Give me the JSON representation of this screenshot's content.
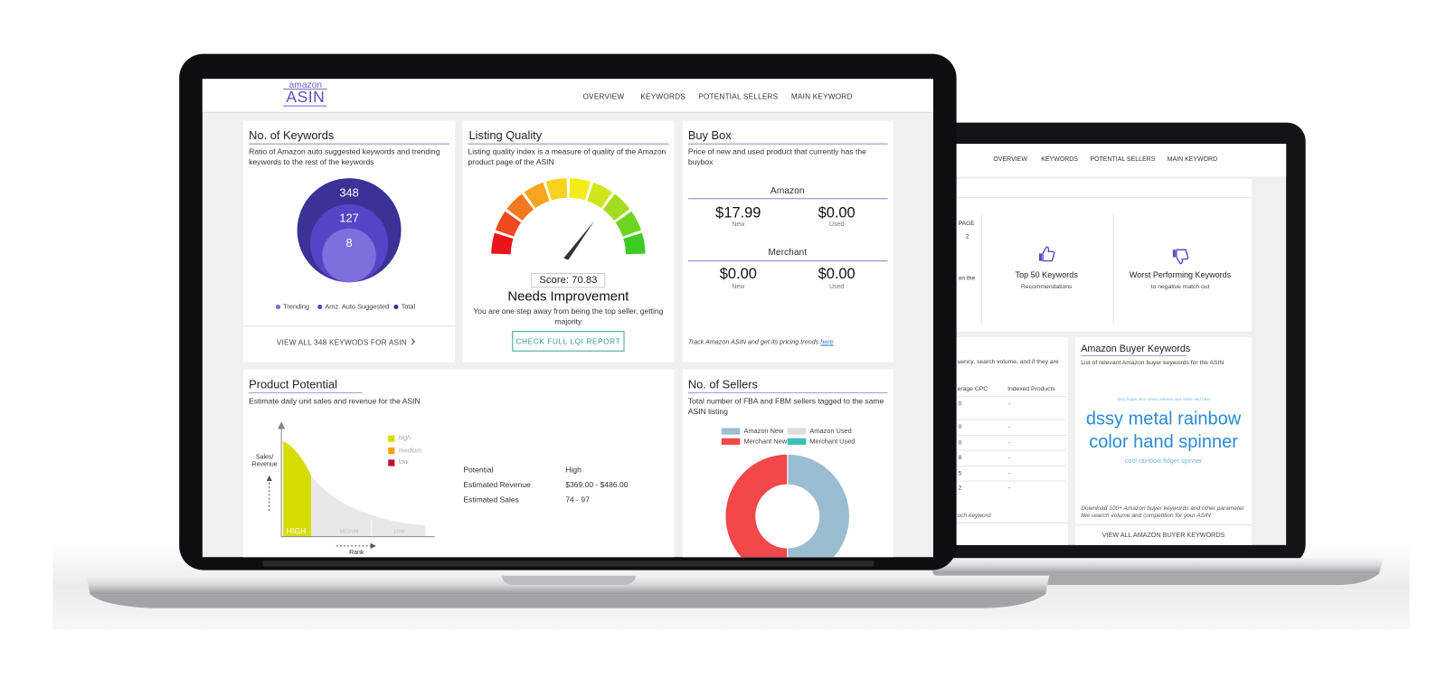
{
  "front": {
    "logo": {
      "top": "amazon",
      "bottom": "ASIN"
    },
    "nav": [
      "OVERVIEW",
      "KEYWORDS",
      "POTENTIAL SELLERS",
      "MAIN KEYWORD"
    ],
    "keywords_card": {
      "title": "No. of Keywords",
      "description": "Ratio of Amazon auto suggested keywords and trending keywords to the rest of the keywords",
      "circles": [
        "348",
        "127",
        "8"
      ],
      "legend": [
        {
          "label": "Trending",
          "color": "#7f6fdc"
        },
        {
          "label": "Amz. Auto Suggested",
          "color": "#5644c6"
        },
        {
          "label": "Total",
          "color": "#3a3296"
        }
      ],
      "link": "VIEW ALL 348 KEYWODS FOR ASIN"
    },
    "listing_quality": {
      "title": "Listing Quality",
      "description": "Listing quality index is a measure of quality of the Amazon product page of the ASIN",
      "score": "Score: 70.83",
      "status": "Needs Improvement",
      "note": "You are one step away from being the top seller, getting majority",
      "button": "CHECK FULL LQI REPORT"
    },
    "buy_box": {
      "title": "Buy Box",
      "description": "Price of new and used product that currently has the buybox",
      "sections": [
        {
          "name": "Amazon",
          "new_price": "$17.99",
          "new_label": "New",
          "used_price": "$0.00",
          "used_label": "Used"
        },
        {
          "name": "Merchant",
          "new_price": "$0.00",
          "new_label": "New",
          "used_price": "$0.00",
          "used_label": "Used"
        }
      ],
      "footer": "Track Amazon ASIN and get its pricing trends",
      "footer_link": "here"
    },
    "product_potential": {
      "title": "Product Potential",
      "description": "Estimate daily unit sales and revenue for the ASIN",
      "y_axis_label": "Sales/ Revenue",
      "x_axis_label": "Rank",
      "zones": [
        "HIGH",
        "MEDIUM",
        "LOW"
      ],
      "legend": [
        "high",
        "medium",
        "low"
      ],
      "rows": [
        {
          "label": "Potential",
          "value": "High"
        },
        {
          "label": "Estimated Revenue",
          "value": "$369.00 - $486.00"
        },
        {
          "label": "Estimated Sales",
          "value": "74 - 97"
        }
      ]
    }
  },
  "chart_data": {
    "type": "donut",
    "title": "No. of Sellers",
    "subtitle": "Total number of FBA and FBM sellers tagged to the same ASIN listing",
    "categories": [
      "Amazon New",
      "Amazon Used",
      "Merchant New",
      "Merchant Used"
    ],
    "values": [
      50,
      0,
      50,
      0
    ],
    "colors": [
      "#9bbdd1",
      "#dcdcdc",
      "#f2474b",
      "#3cc0b4"
    ]
  },
  "back": {
    "nav": [
      "OVERVIEW",
      "KEYWORDS",
      "POTENTIAL SELLERS",
      "MAIN KEYWORD"
    ],
    "partial": {
      "page": "PAGE",
      "page_value": "2",
      "on_the": "on the"
    },
    "top_keywords": {
      "title": "Top 50 Keywords",
      "subtitle": "Recommendations"
    },
    "worst_keywords": {
      "title": "Worst Performing Keywords",
      "subtitle": "to negative match out"
    },
    "table": {
      "description": "uency, search volume, and if they are",
      "headers": [
        "erage CPC",
        "Indexed Products"
      ],
      "rows": [
        [
          "0",
          "-"
        ],
        [
          "0",
          "-"
        ],
        [
          "0",
          "-"
        ],
        [
          "8",
          "-"
        ],
        [
          "5",
          "-"
        ],
        [
          "2",
          "-"
        ]
      ],
      "footer": "uch keyword"
    },
    "buyer_keywords": {
      "title": "Amazon Buyer Keywords",
      "description": "List of relevant Amazon buyer keywords for the ASIN",
      "tags": [
        "dssy fidget dice stress release toys white and blue",
        "dssy metal rainbow color hand spinner",
        "cool rainbow fidget spinner"
      ],
      "footer": "Download 100+ Amazon buyer keywords and other parameter like search volume and competition for your ASIN",
      "link": "VIEW ALL AMAZON BUYER KEYWORDS"
    }
  }
}
